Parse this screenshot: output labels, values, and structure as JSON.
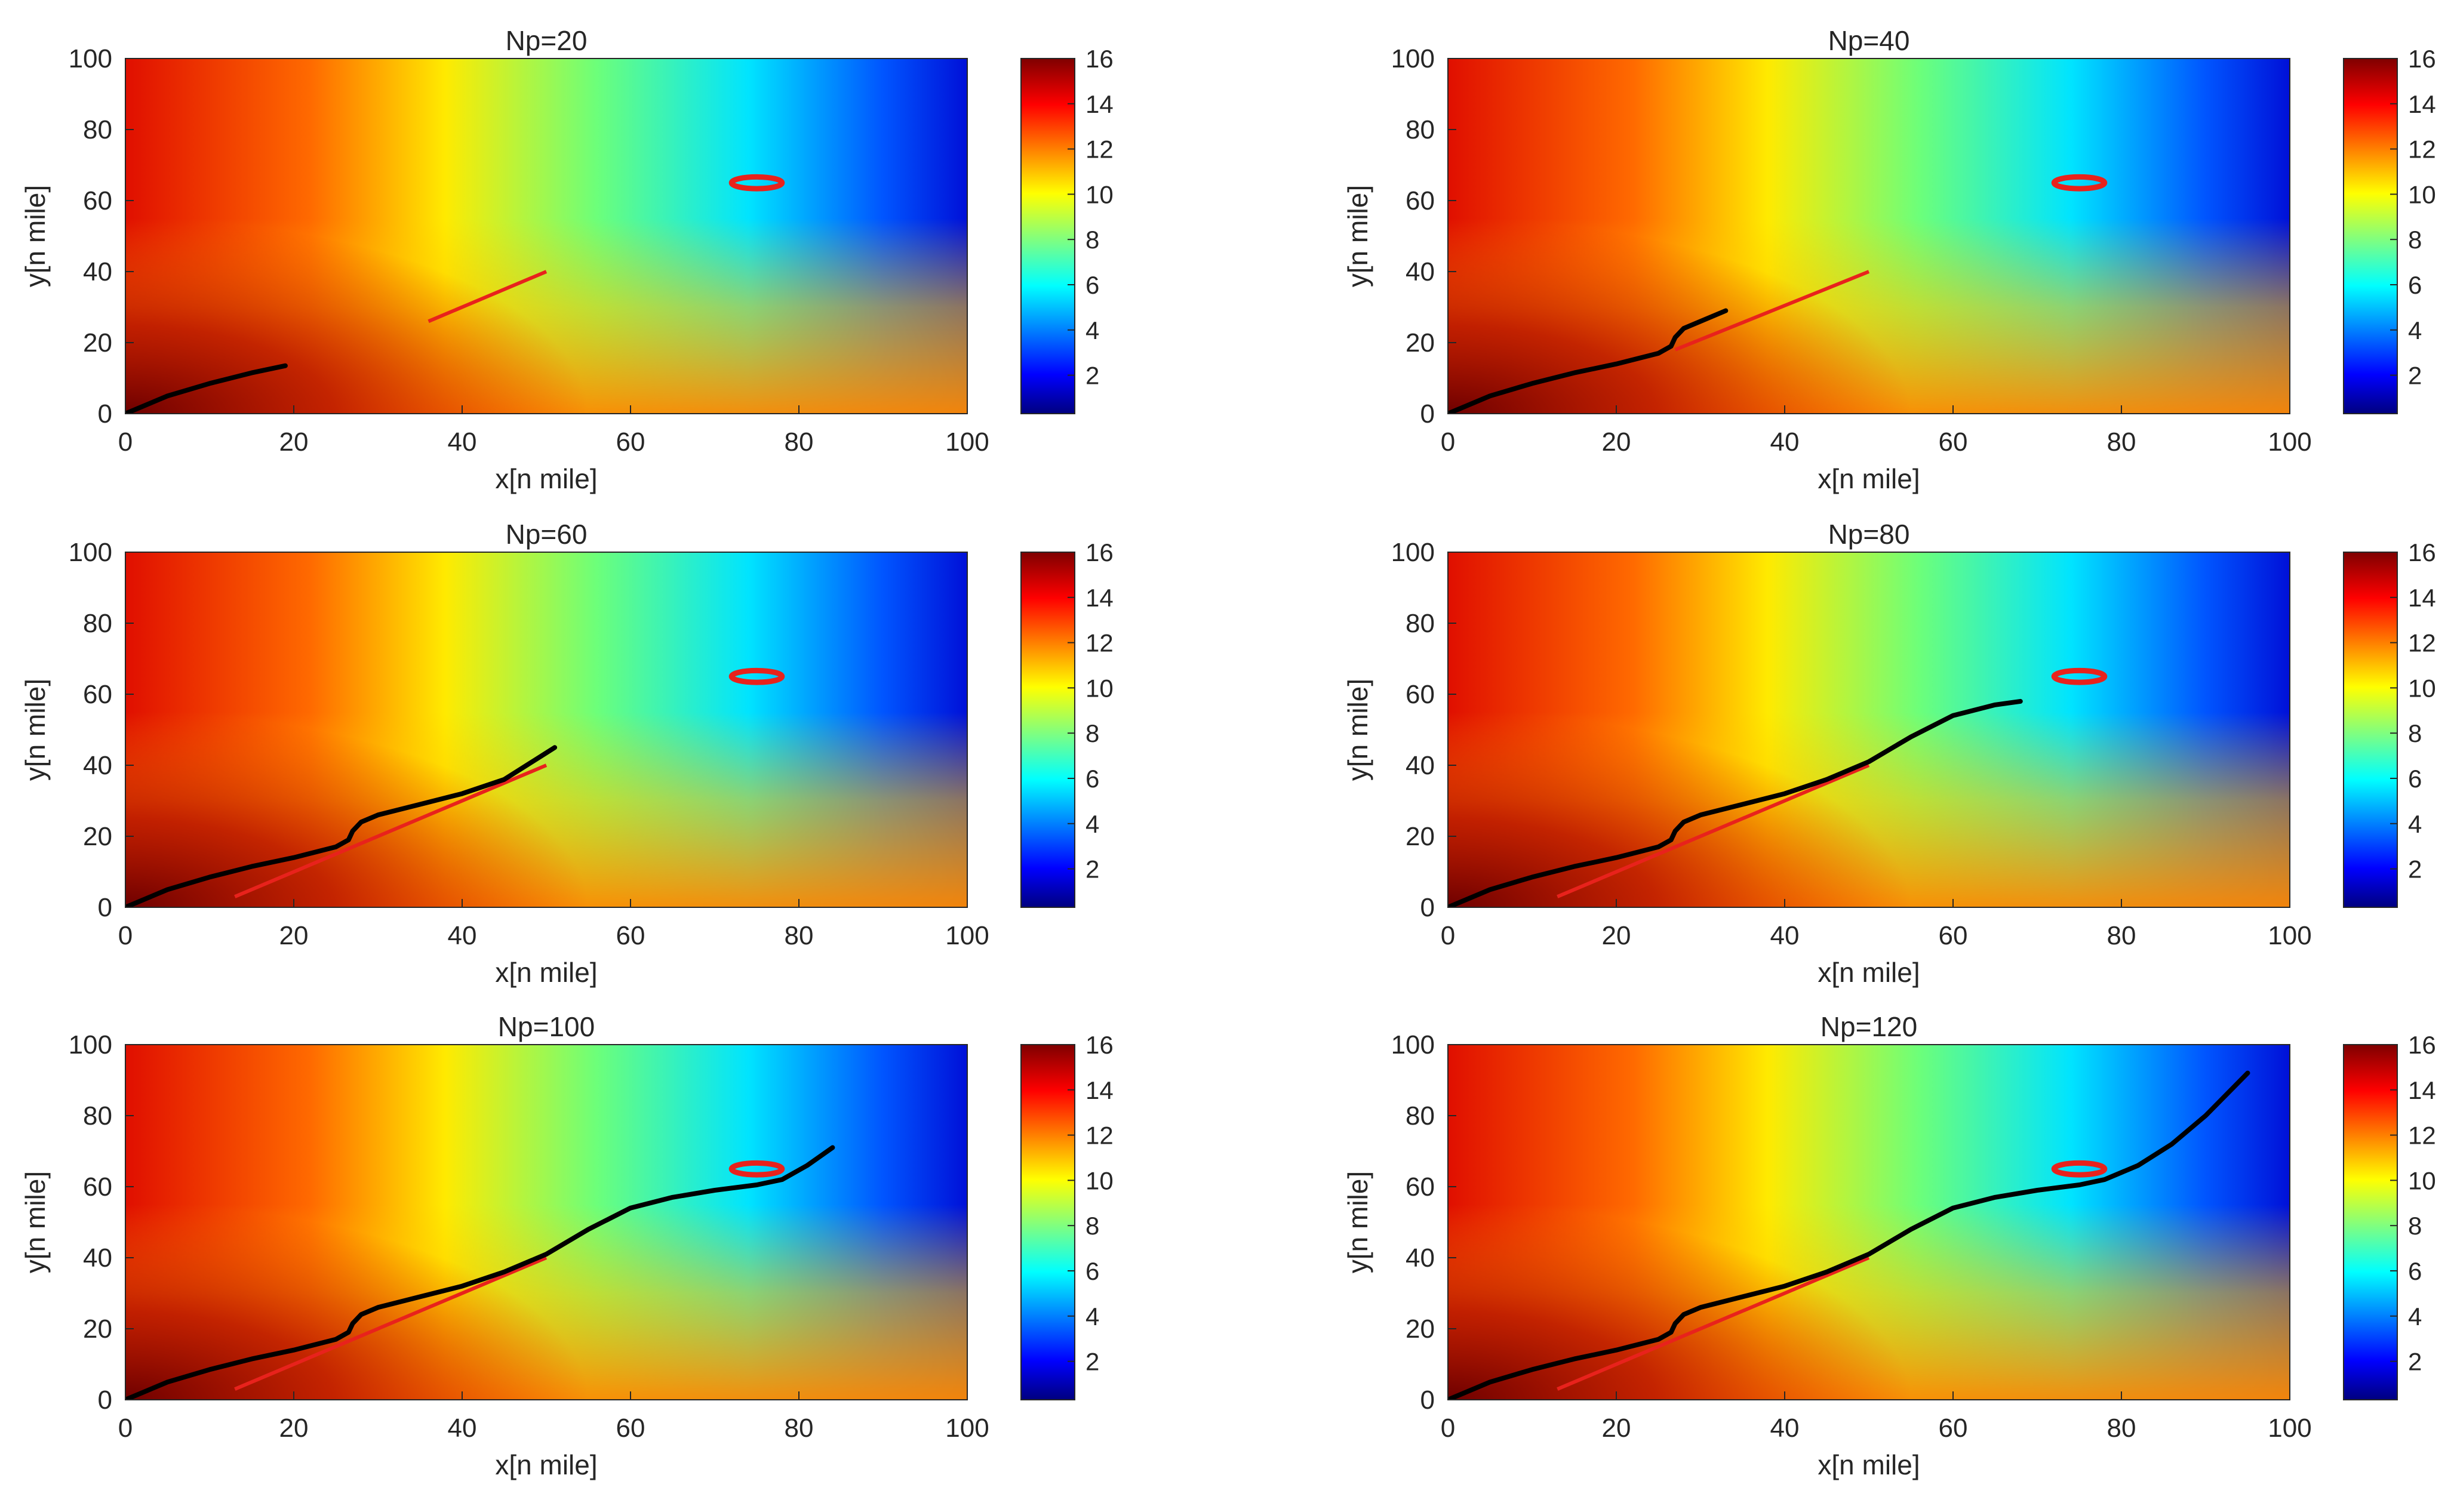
{
  "chart_data": [
    {
      "type": "heatmap",
      "title": "Np=20",
      "xlabel": "x[n mile]",
      "ylabel": "y[n mile]",
      "xlim": [
        0,
        100
      ],
      "ylim": [
        0,
        100
      ],
      "xticks": [
        "0",
        "20",
        "40",
        "60",
        "80",
        "100"
      ],
      "yticks": [
        "0",
        "20",
        "40",
        "60",
        "80",
        "100"
      ],
      "colorbar": {
        "min": 0.3,
        "max": 16,
        "ticks": [
          "2",
          "4",
          "6",
          "8",
          "10",
          "12",
          "14",
          "16"
        ]
      },
      "reference_path": {
        "color": "#e8221c",
        "points": [
          [
            36,
            26
          ],
          [
            50,
            40
          ]
        ]
      },
      "obstacle": {
        "color": "#e8221c",
        "center": [
          75,
          65
        ],
        "rx": 3,
        "ry": 3
      },
      "trajectory": {
        "color": "#000000",
        "points": [
          [
            0,
            0
          ],
          [
            5,
            5
          ],
          [
            10,
            8.5
          ],
          [
            15,
            11.5
          ],
          [
            19,
            13.5
          ]
        ]
      }
    },
    {
      "type": "heatmap",
      "title": "Np=40",
      "xlabel": "x[n mile]",
      "ylabel": "y[n mile]",
      "xlim": [
        0,
        100
      ],
      "ylim": [
        0,
        100
      ],
      "xticks": [
        "0",
        "20",
        "40",
        "60",
        "80",
        "100"
      ],
      "yticks": [
        "0",
        "20",
        "40",
        "60",
        "80",
        "100"
      ],
      "colorbar": {
        "min": 0.3,
        "max": 16,
        "ticks": [
          "2",
          "4",
          "6",
          "8",
          "10",
          "12",
          "14",
          "16"
        ]
      },
      "reference_path": {
        "color": "#e8221c",
        "points": [
          [
            27,
            18
          ],
          [
            50,
            40
          ]
        ]
      },
      "obstacle": {
        "color": "#e8221c",
        "center": [
          75,
          65
        ],
        "rx": 3,
        "ry": 3
      },
      "trajectory": {
        "color": "#000000",
        "points": [
          [
            0,
            0
          ],
          [
            5,
            5
          ],
          [
            10,
            8.5
          ],
          [
            15,
            11.5
          ],
          [
            20,
            14
          ],
          [
            25,
            17
          ],
          [
            26.5,
            19
          ],
          [
            27,
            21.5
          ],
          [
            28,
            24
          ],
          [
            30,
            26
          ],
          [
            33,
            29
          ]
        ]
      }
    },
    {
      "type": "heatmap",
      "title": "Np=60",
      "xlabel": "x[n mile]",
      "ylabel": "y[n mile]",
      "xlim": [
        0,
        100
      ],
      "ylim": [
        0,
        100
      ],
      "xticks": [
        "0",
        "20",
        "40",
        "60",
        "80",
        "100"
      ],
      "yticks": [
        "0",
        "20",
        "40",
        "60",
        "80",
        "100"
      ],
      "colorbar": {
        "min": 0.3,
        "max": 16,
        "ticks": [
          "2",
          "4",
          "6",
          "8",
          "10",
          "12",
          "14",
          "16"
        ]
      },
      "reference_path": {
        "color": "#e8221c",
        "points": [
          [
            13,
            3
          ],
          [
            50,
            40
          ]
        ]
      },
      "obstacle": {
        "color": "#e8221c",
        "center": [
          75,
          65
        ],
        "rx": 3,
        "ry": 3
      },
      "trajectory": {
        "color": "#000000",
        "points": [
          [
            0,
            0
          ],
          [
            5,
            5
          ],
          [
            10,
            8.5
          ],
          [
            15,
            11.5
          ],
          [
            20,
            14
          ],
          [
            25,
            17
          ],
          [
            26.5,
            19
          ],
          [
            27,
            21.5
          ],
          [
            28,
            24
          ],
          [
            30,
            26
          ],
          [
            35,
            29
          ],
          [
            40,
            32
          ],
          [
            45,
            36
          ],
          [
            51,
            45
          ]
        ]
      }
    },
    {
      "type": "heatmap",
      "title": "Np=80",
      "xlabel": "x[n mile]",
      "ylabel": "y[n mile]",
      "xlim": [
        0,
        100
      ],
      "ylim": [
        0,
        100
      ],
      "xticks": [
        "0",
        "20",
        "40",
        "60",
        "80",
        "100"
      ],
      "yticks": [
        "0",
        "20",
        "40",
        "60",
        "80",
        "100"
      ],
      "colorbar": {
        "min": 0.3,
        "max": 16,
        "ticks": [
          "2",
          "4",
          "6",
          "8",
          "10",
          "12",
          "14",
          "16"
        ]
      },
      "reference_path": {
        "color": "#e8221c",
        "points": [
          [
            13,
            3
          ],
          [
            50,
            40
          ]
        ]
      },
      "obstacle": {
        "color": "#e8221c",
        "center": [
          75,
          65
        ],
        "rx": 3,
        "ry": 3
      },
      "trajectory": {
        "color": "#000000",
        "points": [
          [
            0,
            0
          ],
          [
            5,
            5
          ],
          [
            10,
            8.5
          ],
          [
            15,
            11.5
          ],
          [
            20,
            14
          ],
          [
            25,
            17
          ],
          [
            26.5,
            19
          ],
          [
            27,
            21.5
          ],
          [
            28,
            24
          ],
          [
            30,
            26
          ],
          [
            35,
            29
          ],
          [
            40,
            32
          ],
          [
            45,
            36
          ],
          [
            50,
            41
          ],
          [
            55,
            48
          ],
          [
            60,
            54
          ],
          [
            65,
            57
          ],
          [
            68,
            58
          ]
        ]
      }
    },
    {
      "type": "heatmap",
      "title": "Np=100",
      "xlabel": "x[n mile]",
      "ylabel": "y[n mile]",
      "xlim": [
        0,
        100
      ],
      "ylim": [
        0,
        100
      ],
      "xticks": [
        "0",
        "20",
        "40",
        "60",
        "80",
        "100"
      ],
      "yticks": [
        "0",
        "20",
        "40",
        "60",
        "80",
        "100"
      ],
      "colorbar": {
        "min": 0.3,
        "max": 16,
        "ticks": [
          "2",
          "4",
          "6",
          "8",
          "10",
          "12",
          "14",
          "16"
        ]
      },
      "reference_path": {
        "color": "#e8221c",
        "points": [
          [
            13,
            3
          ],
          [
            50,
            40
          ]
        ]
      },
      "obstacle": {
        "color": "#e8221c",
        "center": [
          75,
          65
        ],
        "rx": 3,
        "ry": 3
      },
      "trajectory": {
        "color": "#000000",
        "points": [
          [
            0,
            0
          ],
          [
            5,
            5
          ],
          [
            10,
            8.5
          ],
          [
            15,
            11.5
          ],
          [
            20,
            14
          ],
          [
            25,
            17
          ],
          [
            26.5,
            19
          ],
          [
            27,
            21.5
          ],
          [
            28,
            24
          ],
          [
            30,
            26
          ],
          [
            35,
            29
          ],
          [
            40,
            32
          ],
          [
            45,
            36
          ],
          [
            50,
            41
          ],
          [
            55,
            48
          ],
          [
            60,
            54
          ],
          [
            65,
            57
          ],
          [
            70,
            59
          ],
          [
            75,
            60.5
          ],
          [
            78,
            62
          ],
          [
            81,
            66
          ],
          [
            84,
            71
          ]
        ]
      }
    },
    {
      "type": "heatmap",
      "title": "Np=120",
      "xlabel": "x[n mile]",
      "ylabel": "y[n mile]",
      "xlim": [
        0,
        100
      ],
      "ylim": [
        0,
        100
      ],
      "xticks": [
        "0",
        "20",
        "40",
        "60",
        "80",
        "100"
      ],
      "yticks": [
        "0",
        "20",
        "40",
        "60",
        "80",
        "100"
      ],
      "colorbar": {
        "min": 0.3,
        "max": 16,
        "ticks": [
          "2",
          "4",
          "6",
          "8",
          "10",
          "12",
          "14",
          "16"
        ]
      },
      "reference_path": {
        "color": "#e8221c",
        "points": [
          [
            13,
            3
          ],
          [
            50,
            40
          ]
        ]
      },
      "obstacle": {
        "color": "#e8221c",
        "center": [
          75,
          65
        ],
        "rx": 3,
        "ry": 3
      },
      "trajectory": {
        "color": "#000000",
        "points": [
          [
            0,
            0
          ],
          [
            5,
            5
          ],
          [
            10,
            8.5
          ],
          [
            15,
            11.5
          ],
          [
            20,
            14
          ],
          [
            25,
            17
          ],
          [
            26.5,
            19
          ],
          [
            27,
            21.5
          ],
          [
            28,
            24
          ],
          [
            30,
            26
          ],
          [
            35,
            29
          ],
          [
            40,
            32
          ],
          [
            45,
            36
          ],
          [
            50,
            41
          ],
          [
            55,
            48
          ],
          [
            60,
            54
          ],
          [
            65,
            57
          ],
          [
            70,
            59
          ],
          [
            75,
            60.5
          ],
          [
            78,
            62
          ],
          [
            82,
            66
          ],
          [
            86,
            72
          ],
          [
            90,
            80
          ],
          [
            95,
            92
          ]
        ]
      }
    }
  ]
}
